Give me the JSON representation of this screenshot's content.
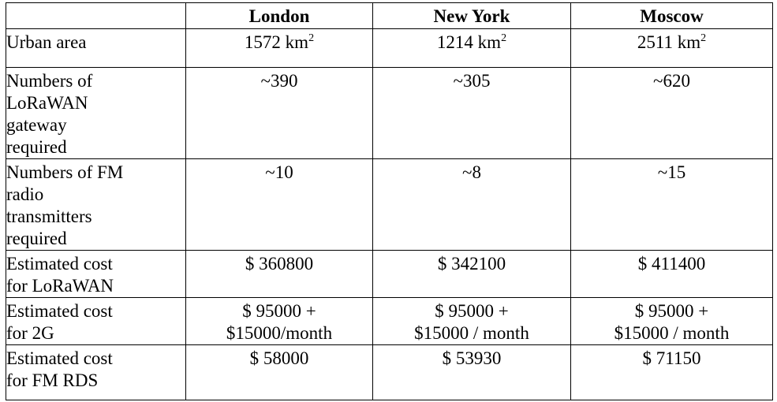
{
  "table": {
    "headers": [
      "",
      "London",
      "New York",
      "Moscow"
    ],
    "rows": [
      {
        "label": [
          "Urban area"
        ],
        "cells": [
          {
            "value": "1572 km",
            "sup": "2"
          },
          {
            "value": "1214 km",
            "sup": "2"
          },
          {
            "value": "2511 km",
            "sup": "2"
          }
        ]
      },
      {
        "label": [
          "Numbers of",
          "LoRaWAN",
          "gateway",
          "required"
        ],
        "cells": [
          [
            "~390"
          ],
          [
            "~305"
          ],
          [
            "~620"
          ]
        ]
      },
      {
        "label": [
          "Numbers of FM",
          "radio",
          "transmitters",
          "required"
        ],
        "cells": [
          [
            "~10"
          ],
          [
            "~8"
          ],
          [
            "~15"
          ]
        ]
      },
      {
        "label": [
          "Estimated cost",
          "for LoRaWAN"
        ],
        "cells": [
          [
            "$ 360800"
          ],
          [
            "$ 342100"
          ],
          [
            "$ 411400"
          ]
        ]
      },
      {
        "label": [
          "Estimated cost",
          "for 2G"
        ],
        "cells": [
          [
            "$ 95000 +",
            "$15000/month"
          ],
          [
            "$ 95000 +",
            "$15000 / month"
          ],
          [
            "$ 95000 +",
            "$15000 / month"
          ]
        ]
      },
      {
        "label": [
          "Estimated cost",
          "for FM RDS"
        ],
        "cells": [
          [
            "$ 58000"
          ],
          [
            "$ 53930"
          ],
          [
            "$ 71150"
          ]
        ]
      }
    ]
  }
}
